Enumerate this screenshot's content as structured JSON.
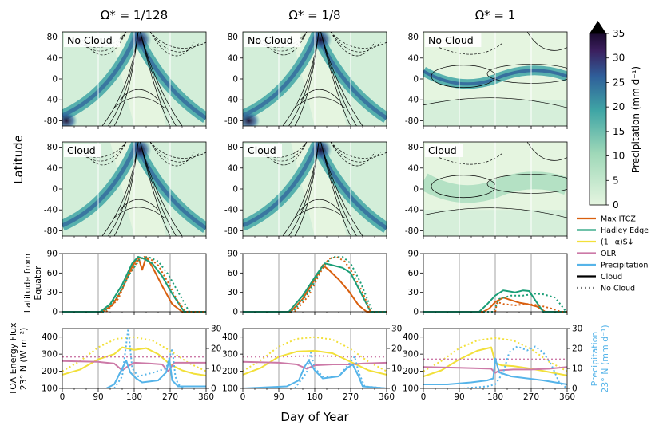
{
  "figure": {
    "row_label_latitude": "Latitude",
    "row_label_ext_1": "Latitude from",
    "row_label_ext_2": "Equator",
    "row_label_toa_1": "TOA Energy Flux",
    "row_label_toa_2": "23° N (W m⁻²)",
    "right_label_1": "Precipitation",
    "right_label_2": "23° N (mm d⁻¹)",
    "xlabel": "Day of Year",
    "panel_no_cloud": "No Cloud",
    "panel_cloud": "Cloud",
    "columns": [
      "Ω* = 1/128",
      "Ω* = 1/8",
      "Ω* = 1"
    ]
  },
  "colors": {
    "max_itcz": "#d95f0e",
    "hadley_edge": "#1a9e77",
    "absorbed_sw": "#f2e03a",
    "olr": "#cc79a7",
    "precipitation": "#56b4e9",
    "cloud": "#000000",
    "no_cloud": "#777777",
    "cmap_low": "#e5f5e0",
    "cmap_mid": "#3fa5a5",
    "cmap_high": "#1a0a2e"
  },
  "chart_data": {
    "type": "line",
    "x_ticks": [
      0,
      90,
      180,
      270,
      360
    ],
    "lat_ticks": [
      80,
      40,
      0,
      -40,
      -80
    ],
    "lat_ylim": [
      -90,
      90
    ],
    "ext_ticks": [
      0,
      30,
      60,
      90
    ],
    "ext_ylim": [
      0,
      90
    ],
    "toa_ticks": [
      100,
      200,
      300,
      400
    ],
    "toa_ylim": [
      100,
      450
    ],
    "precip_ticks": [
      0,
      10,
      20,
      30
    ],
    "precip_ylim": [
      0,
      30
    ],
    "colorbar": {
      "label": "Precipitation (mm d⁻¹)",
      "ticks": [
        0,
        5,
        10,
        15,
        20,
        25,
        30,
        35
      ],
      "range": [
        0,
        35
      ],
      "extend": "max"
    },
    "legend": [
      {
        "label": "Max ITCZ",
        "color_key": "max_itcz",
        "dash": false
      },
      {
        "label": "Hadley Edge",
        "color_key": "hadley_edge",
        "dash": false
      },
      {
        "label": "(1−α)S↓",
        "color_key": "absorbed_sw",
        "dash": false
      },
      {
        "label": "OLR",
        "color_key": "olr",
        "dash": false
      },
      {
        "label": "Precipitation",
        "color_key": "precipitation",
        "dash": false
      },
      {
        "label": "Cloud",
        "color_key": "cloud",
        "dash": false
      },
      {
        "label": "No Cloud",
        "color_key": "no_cloud",
        "dash": true
      }
    ],
    "extent_panels": [
      {
        "column": "Ω* = 1/128",
        "series": [
          {
            "name": "Max ITCZ Cloud",
            "x": [
              0,
              100,
              125,
              150,
              175,
              190,
              200,
              210,
              225,
              250,
              275,
              300,
              360
            ],
            "y": [
              0,
              0,
              10,
              35,
              70,
              85,
              65,
              85,
              70,
              40,
              12,
              0,
              0
            ]
          },
          {
            "name": "Hadley Edge Cloud",
            "x": [
              0,
              95,
              120,
              150,
              175,
              190,
              205,
              225,
              250,
              275,
              305,
              360
            ],
            "y": [
              0,
              0,
              12,
              42,
              75,
              85,
              82,
              75,
              55,
              28,
              0,
              0
            ]
          },
          {
            "name": "Max ITCZ No Cloud",
            "x": [
              0,
              110,
              140,
              165,
              190,
              205,
              220,
              240,
              265,
              290,
              310,
              360
            ],
            "y": [
              0,
              0,
              20,
              55,
              80,
              85,
              82,
              72,
              45,
              15,
              0,
              0
            ]
          },
          {
            "name": "Hadley Edge No Cloud",
            "x": [
              0,
              105,
              140,
              170,
              195,
              215,
              240,
              265,
              295,
              318,
              360
            ],
            "y": [
              0,
              0,
              25,
              60,
              82,
              85,
              78,
              58,
              25,
              0,
              0
            ]
          }
        ]
      },
      {
        "column": "Ω* = 1/8",
        "series": [
          {
            "name": "Max ITCZ Cloud",
            "x": [
              0,
              120,
              150,
              180,
              200,
              215,
              240,
              265,
              290,
              310,
              360
            ],
            "y": [
              0,
              0,
              20,
              50,
              72,
              65,
              50,
              32,
              10,
              0,
              0
            ]
          },
          {
            "name": "Hadley Edge Cloud",
            "x": [
              0,
              115,
              150,
              185,
              205,
              225,
              250,
              270,
              295,
              320,
              360
            ],
            "y": [
              0,
              0,
              25,
              58,
              75,
              72,
              68,
              60,
              30,
              0,
              0
            ]
          },
          {
            "name": "Max ITCZ No Cloud",
            "x": [
              0,
              130,
              165,
              195,
              215,
              235,
              255,
              275,
              300,
              320,
              360
            ],
            "y": [
              0,
              0,
              25,
              62,
              82,
              85,
              78,
              60,
              30,
              0,
              0
            ]
          },
          {
            "name": "Hadley Edge No Cloud",
            "x": [
              0,
              125,
              165,
              200,
              225,
              250,
              270,
              295,
              325,
              360
            ],
            "y": [
              0,
              0,
              30,
              70,
              85,
              85,
              75,
              45,
              0,
              0
            ]
          }
        ]
      },
      {
        "column": "Ω* = 1",
        "series": [
          {
            "name": "Max ITCZ Cloud",
            "x": [
              0,
              150,
              165,
              180,
              200,
              220,
              240,
              260,
              285,
              305,
              360
            ],
            "y": [
              0,
              0,
              5,
              15,
              22,
              18,
              14,
              12,
              8,
              0,
              0
            ]
          },
          {
            "name": "Hadley Edge Cloud",
            "x": [
              0,
              140,
              160,
              180,
              200,
              230,
              250,
              265,
              280,
              300,
              360
            ],
            "y": [
              0,
              0,
              12,
              25,
              33,
              30,
              33,
              32,
              18,
              0,
              0
            ]
          },
          {
            "name": "Max ITCZ No Cloud",
            "x": [
              0,
              180,
              185,
              200,
              230,
              260,
              290,
              320,
              345,
              360
            ],
            "y": [
              0,
              0,
              15,
              12,
              10,
              12,
              10,
              5,
              0,
              0
            ]
          },
          {
            "name": "Hadley Edge No Cloud",
            "x": [
              0,
              175,
              190,
              220,
              250,
              280,
              300,
              330,
              355,
              360
            ],
            "y": [
              0,
              0,
              20,
              25,
              25,
              28,
              27,
              22,
              2,
              0
            ]
          }
        ]
      }
    ],
    "toa_panels": [
      {
        "column": "Ω* = 1/128",
        "series": [
          {
            "name": "(1−α)S↓ Cloud",
            "axis": "flux",
            "x": [
              0,
              45,
              90,
              130,
              150,
              180,
              210,
              240,
              270,
              300,
              330,
              360
            ],
            "y": [
              180,
              210,
              270,
              300,
              340,
              325,
              335,
              300,
              240,
              205,
              185,
              175
            ]
          },
          {
            "name": "(1−α)S↓ No Cloud",
            "axis": "flux",
            "x": [
              0,
              45,
              90,
              135,
              180,
              225,
              270,
              315,
              360
            ],
            "y": [
              200,
              260,
              340,
              390,
              400,
              380,
              320,
              250,
              200
            ]
          },
          {
            "name": "OLR Cloud",
            "axis": "flux",
            "x": [
              0,
              90,
              130,
              150,
              165,
              180,
              220,
              250,
              265,
              280,
              320,
              360
            ],
            "y": [
              260,
              255,
              245,
              205,
              230,
              250,
              245,
              240,
              200,
              250,
              250,
              250
            ]
          },
          {
            "name": "OLR No Cloud",
            "axis": "flux",
            "x": [
              0,
              90,
              180,
              270,
              360
            ],
            "y": [
              285,
              285,
              285,
              285,
              285
            ]
          },
          {
            "name": "Precipitation Cloud",
            "axis": "precip",
            "x": [
              0,
              110,
              130,
              150,
              160,
              170,
              185,
              200,
              240,
              260,
              268,
              275,
              290,
              360
            ],
            "y": [
              0,
              0,
              2,
              10,
              14,
              8,
              5,
              3,
              4,
              8,
              15,
              4,
              1,
              1
            ]
          },
          {
            "name": "Precipitation No Cloud",
            "axis": "precip",
            "x": [
              0,
              130,
              150,
              160,
              165,
              175,
              190,
              230,
              260,
              275,
              283,
              290,
              305,
              360
            ],
            "y": [
              0,
              0,
              6,
              22,
              30,
              10,
              6,
              8,
              10,
              20,
              6,
              2,
              0,
              0
            ]
          }
        ]
      },
      {
        "column": "Ω* = 1/8",
        "series": [
          {
            "name": "(1−α)S↓ Cloud",
            "axis": "flux",
            "x": [
              0,
              45,
              90,
              135,
              180,
              225,
              270,
              315,
              360
            ],
            "y": [
              180,
              220,
              285,
              315,
              320,
              305,
              255,
              205,
              180
            ]
          },
          {
            "name": "(1−α)S↓ No Cloud",
            "axis": "flux",
            "x": [
              0,
              45,
              90,
              135,
              180,
              225,
              270,
              315,
              360
            ],
            "y": [
              200,
              265,
              345,
              390,
              400,
              385,
              330,
              255,
              200
            ]
          },
          {
            "name": "OLR Cloud",
            "axis": "flux",
            "x": [
              0,
              90,
              135,
              160,
              180,
              225,
              270,
              300,
              360
            ],
            "y": [
              255,
              250,
              240,
              215,
              235,
              240,
              240,
              245,
              250
            ]
          },
          {
            "name": "OLR No Cloud",
            "axis": "flux",
            "x": [
              0,
              90,
              180,
              270,
              360
            ],
            "y": [
              285,
              285,
              290,
              285,
              285
            ]
          },
          {
            "name": "Precipitation Cloud",
            "axis": "precip",
            "x": [
              0,
              110,
              140,
              155,
              165,
              180,
              200,
              240,
              260,
              275,
              290,
              300,
              360
            ],
            "y": [
              0,
              1,
              4,
              11,
              14,
              9,
              5,
              6,
              10,
              12,
              6,
              1,
              0
            ]
          },
          {
            "name": "Precipitation No Cloud",
            "axis": "precip",
            "x": [
              0,
              130,
              160,
              170,
              180,
              200,
              240,
              265,
              280,
              290,
              305,
              360
            ],
            "y": [
              0,
              0,
              8,
              18,
              10,
              6,
              6,
              12,
              16,
              8,
              1,
              0
            ]
          }
        ]
      },
      {
        "column": "Ω* = 1",
        "series": [
          {
            "name": "(1−α)S↓ Cloud",
            "axis": "flux",
            "x": [
              0,
              45,
              90,
              135,
              170,
              180,
              195,
              225,
              270,
              315,
              360
            ],
            "y": [
              170,
              205,
              270,
              320,
              340,
              250,
              235,
              230,
              215,
              195,
              175
            ]
          },
          {
            "name": "(1−α)S↓ No Cloud",
            "axis": "flux",
            "x": [
              0,
              45,
              90,
              135,
              180,
              225,
              270,
              315,
              360
            ],
            "y": [
              200,
              260,
              335,
              380,
              395,
              380,
              330,
              255,
              200
            ]
          },
          {
            "name": "OLR Cloud",
            "axis": "flux",
            "x": [
              0,
              90,
              170,
              180,
              190,
              225,
              270,
              315,
              360
            ],
            "y": [
              225,
              220,
              215,
              190,
              205,
              210,
              210,
              215,
              225
            ]
          },
          {
            "name": "OLR No Cloud",
            "axis": "flux",
            "x": [
              0,
              90,
              180,
              270,
              360
            ],
            "y": [
              270,
              270,
              270,
              270,
              270
            ]
          },
          {
            "name": "Precipitation Cloud",
            "axis": "precip",
            "x": [
              0,
              60,
              120,
              160,
              175,
              180,
              190,
              220,
              260,
              300,
              330,
              360
            ],
            "y": [
              2,
              2,
              3,
              4,
              5,
              15,
              8,
              6,
              5,
              4,
              3,
              2
            ]
          },
          {
            "name": "Precipitation No Cloud",
            "axis": "precip",
            "x": [
              0,
              100,
              160,
              180,
              200,
              215,
              235,
              260,
              280,
              300,
              320,
              340,
              360
            ],
            "y": [
              0,
              0,
              1,
              2,
              8,
              18,
              21,
              19,
              21,
              18,
              12,
              3,
              0
            ]
          }
        ]
      }
    ]
  }
}
